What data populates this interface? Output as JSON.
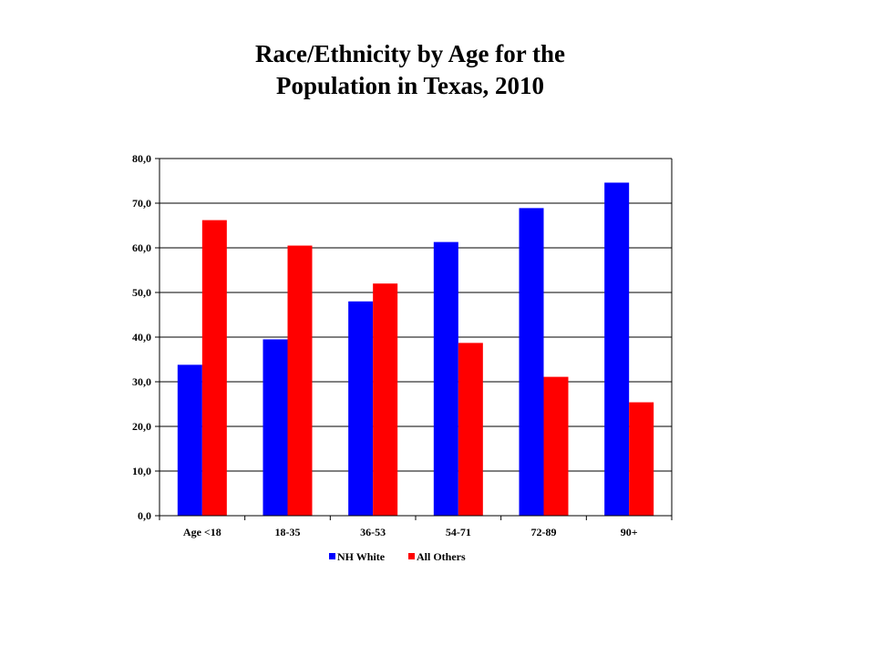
{
  "chart_data": {
    "type": "bar",
    "title_line1": "Race/Ethnicity by Age for the",
    "title_line2": "Population in Texas, 2010",
    "categories": [
      "Age <18",
      "18-35",
      "36-53",
      "54-71",
      "72-89",
      "90+"
    ],
    "series": [
      {
        "name": "NH White",
        "color": "#0000FF",
        "values": [
          33.8,
          39.5,
          48.0,
          61.3,
          68.9,
          74.6
        ]
      },
      {
        "name": "All Others",
        "color": "#FF0000",
        "values": [
          66.2,
          60.5,
          52.0,
          38.7,
          31.1,
          25.4
        ]
      }
    ],
    "yticks": [
      "0,0",
      "10,0",
      "20,0",
      "30,0",
      "40,0",
      "50,0",
      "60,0",
      "70,0",
      "80,0"
    ],
    "ylim": [
      0,
      80
    ],
    "grid": true,
    "legend_position": "bottom"
  }
}
